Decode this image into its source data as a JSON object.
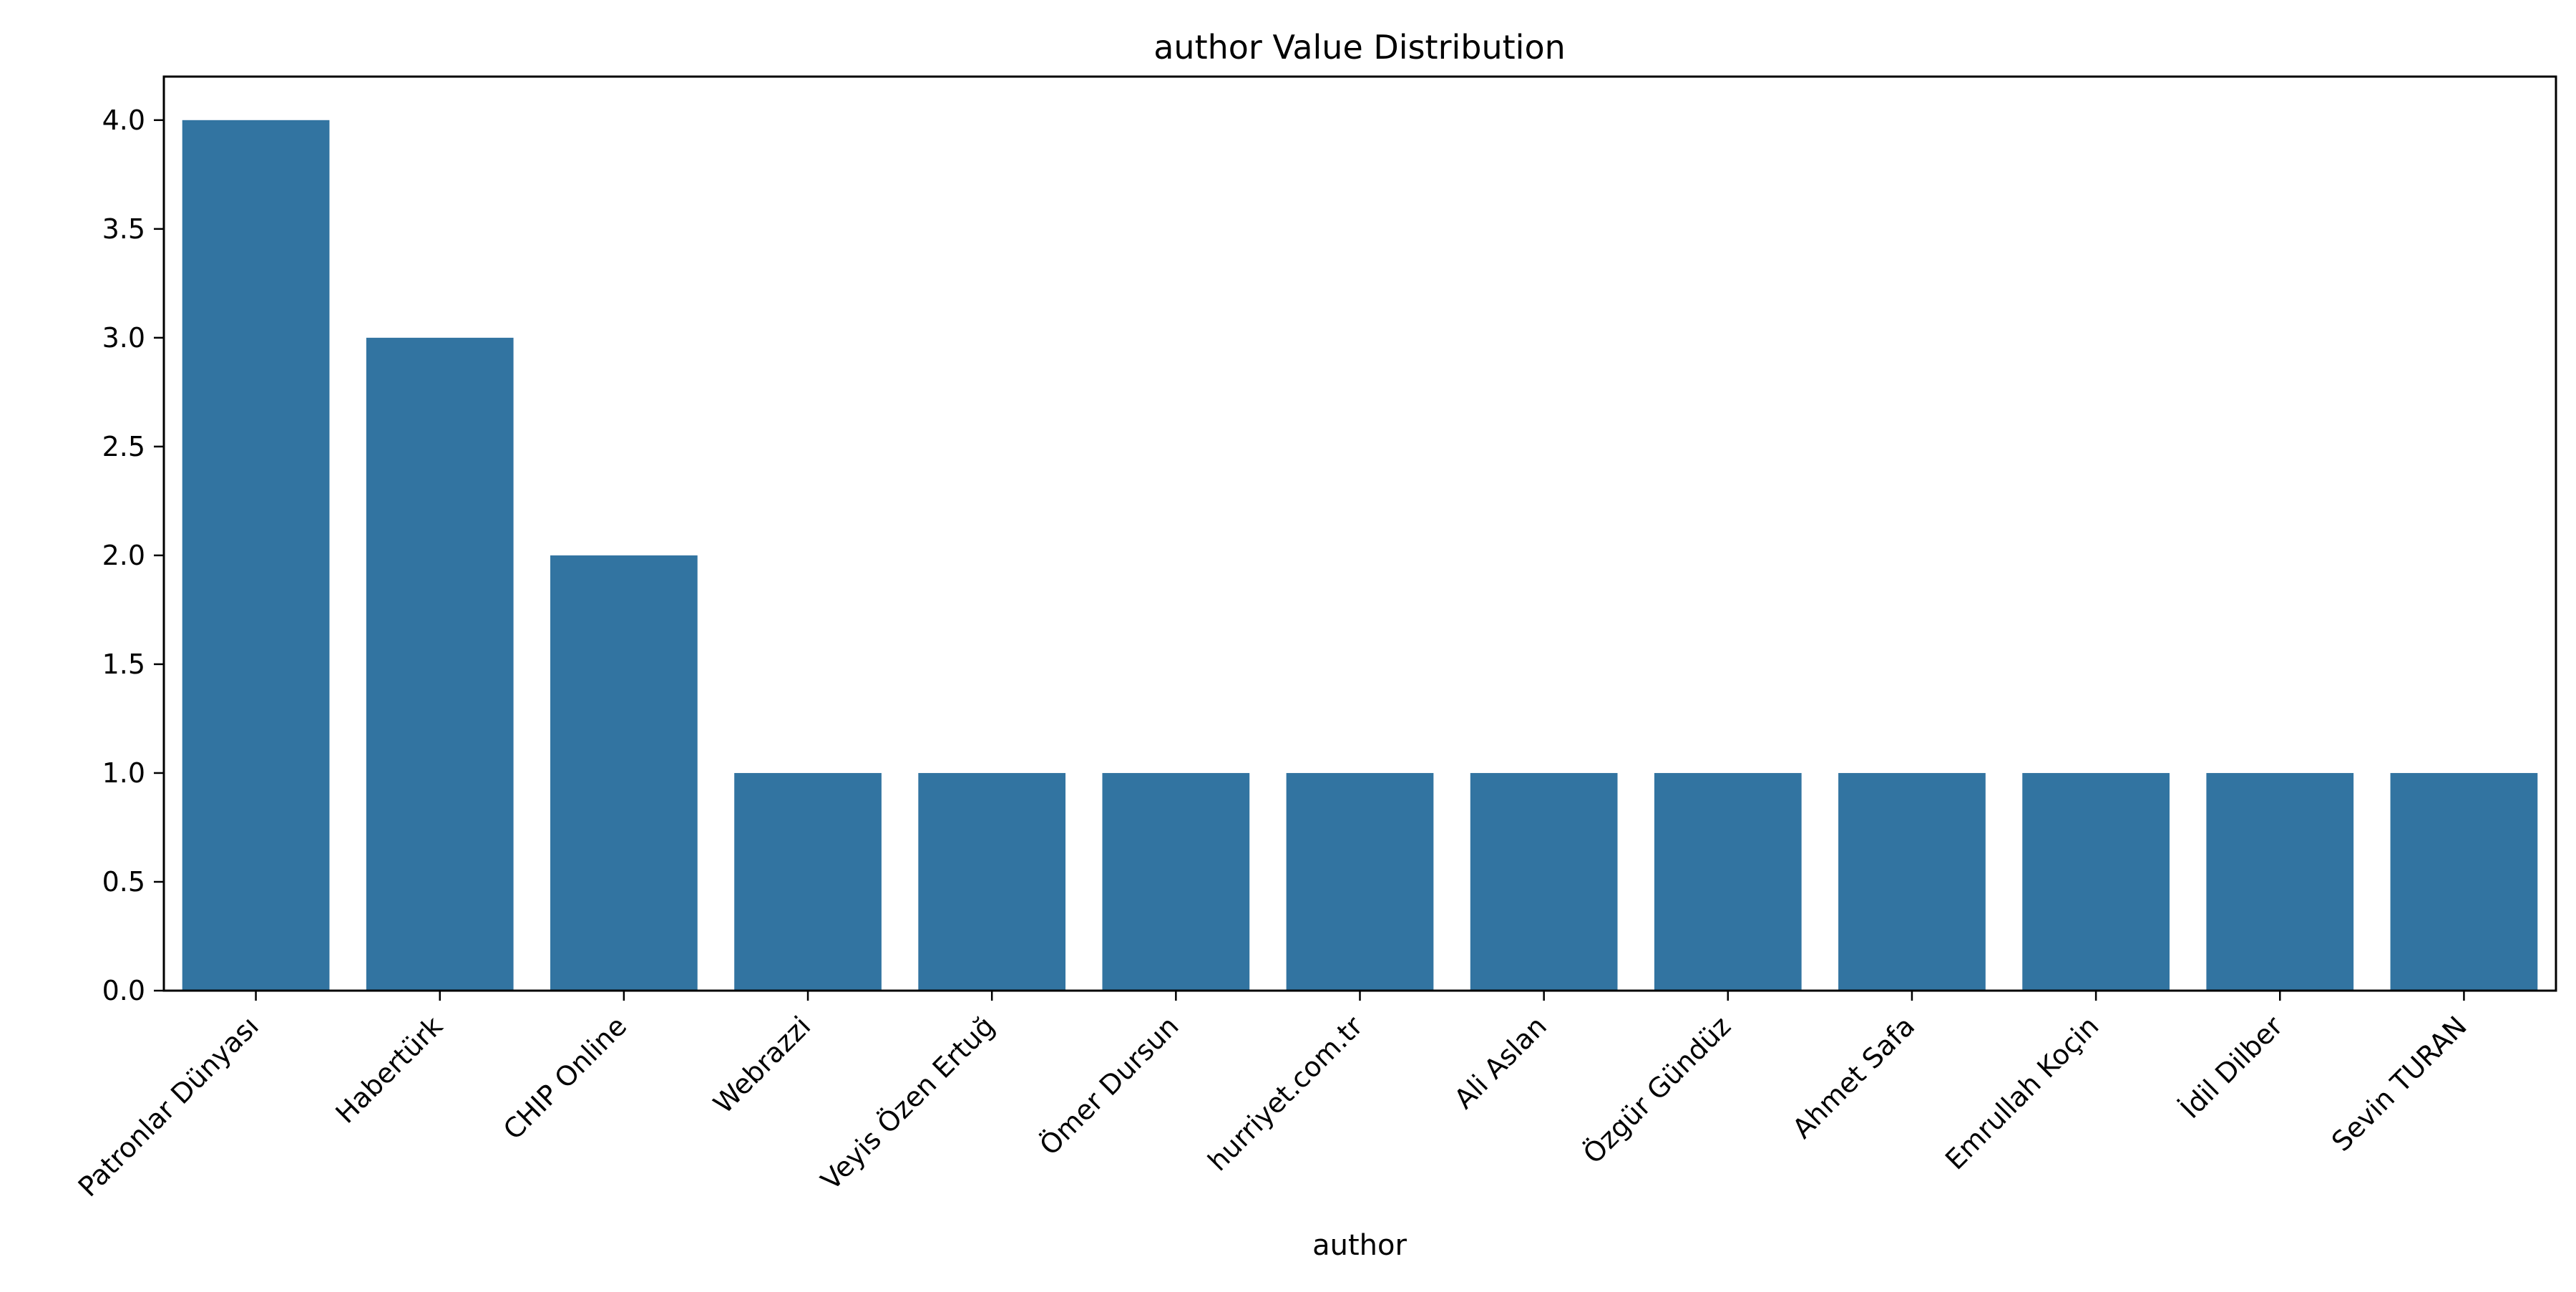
{
  "chart_data": {
    "type": "bar",
    "title": "author Value Distribution",
    "xlabel": "author",
    "ylabel": "",
    "categories": [
      "Patronlar Dünyası",
      "Habertürk",
      "CHIP Online",
      "Webrazzi",
      "Veyis Özen Ertuğ",
      "Ömer Dursun",
      "hurriyet.com.tr",
      "Ali Aslan",
      "Özgür Gündüz",
      "Ahmet Safa",
      "Emrullah Koçin",
      "İdil Dilber",
      "Sevin TURAN"
    ],
    "values": [
      4,
      3,
      2,
      1,
      1,
      1,
      1,
      1,
      1,
      1,
      1,
      1,
      1
    ],
    "ylim": [
      0,
      4.2
    ],
    "yticks": [
      0.0,
      0.5,
      1.0,
      1.5,
      2.0,
      2.5,
      3.0,
      3.5,
      4.0
    ],
    "ytick_labels": [
      "0.0",
      "0.5",
      "1.0",
      "1.5",
      "2.0",
      "2.5",
      "3.0",
      "3.5",
      "4.0"
    ],
    "grid": false,
    "bar_color": "#3274a1"
  }
}
